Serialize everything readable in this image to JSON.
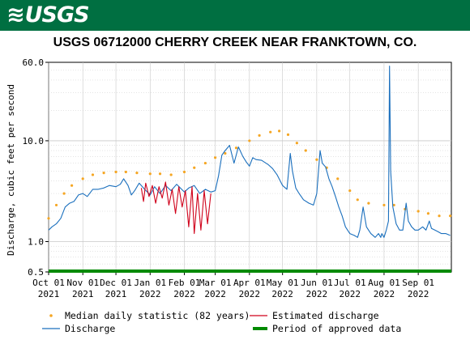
{
  "header": {
    "logo_text": "USGS",
    "banner_color": "#006f41"
  },
  "chart_data": {
    "type": "line",
    "title": "USGS 06712000 CHERRY CREEK NEAR FRANKTOWN, CO.",
    "ylabel": "Discharge, cubic feet per second",
    "xlabel": "",
    "yscale": "log",
    "ylim": [
      0.5,
      60.0
    ],
    "xlim": [
      "2021-10-01",
      "2022-10-01"
    ],
    "grid": true,
    "y_ticks": [
      {
        "value": 0.5,
        "label": "0.5"
      },
      {
        "value": 1.0,
        "label": "1.0"
      },
      {
        "value": 10.0,
        "label": "10.0"
      },
      {
        "value": 60.0,
        "label": "60.0"
      }
    ],
    "x_ticks": [
      {
        "date": "2021-10-01",
        "line1": "Oct 01",
        "line2": "2021"
      },
      {
        "date": "2021-11-01",
        "line1": "Nov 01",
        "line2": "2021"
      },
      {
        "date": "2021-12-01",
        "line1": "Dec 01",
        "line2": "2021"
      },
      {
        "date": "2022-01-01",
        "line1": "Jan 01",
        "line2": "2022"
      },
      {
        "date": "2022-02-01",
        "line1": "Feb 01",
        "line2": "2022"
      },
      {
        "date": "2022-03-01",
        "line1": "Mar 01",
        "line2": "2022"
      },
      {
        "date": "2022-04-01",
        "line1": "Apr 01",
        "line2": "2022"
      },
      {
        "date": "2022-05-01",
        "line1": "May 01",
        "line2": "2022"
      },
      {
        "date": "2022-06-01",
        "line1": "Jun 01",
        "line2": "2022"
      },
      {
        "date": "2022-07-01",
        "line1": "Jul 01",
        "line2": "2022"
      },
      {
        "date": "2022-08-01",
        "line1": "Aug 01",
        "line2": "2022"
      },
      {
        "date": "2022-09-01",
        "line1": "Sep 01",
        "line2": "2022"
      }
    ],
    "legend_position": "bottom",
    "series": [
      {
        "name": "Median daily statistic (82 years)",
        "style": "dots",
        "color": "#f5a623",
        "points": [
          [
            "2021-10-01",
            1.7
          ],
          [
            "2021-10-08",
            2.3
          ],
          [
            "2021-10-15",
            3.0
          ],
          [
            "2021-10-22",
            3.6
          ],
          [
            "2021-11-01",
            4.2
          ],
          [
            "2021-11-10",
            4.6
          ],
          [
            "2021-11-20",
            4.8
          ],
          [
            "2021-12-01",
            4.9
          ],
          [
            "2021-12-10",
            4.9
          ],
          [
            "2021-12-20",
            4.8
          ],
          [
            "2022-01-01",
            4.7
          ],
          [
            "2022-01-10",
            4.7
          ],
          [
            "2022-01-20",
            4.6
          ],
          [
            "2022-02-01",
            4.9
          ],
          [
            "2022-02-10",
            5.4
          ],
          [
            "2022-02-20",
            6.0
          ],
          [
            "2022-03-01",
            6.8
          ],
          [
            "2022-03-10",
            7.5
          ],
          [
            "2022-03-20",
            8.5
          ],
          [
            "2022-04-01",
            10.0
          ],
          [
            "2022-04-10",
            11.3
          ],
          [
            "2022-04-20",
            12.2
          ],
          [
            "2022-04-28",
            12.5
          ],
          [
            "2022-05-06",
            11.5
          ],
          [
            "2022-05-14",
            9.5
          ],
          [
            "2022-05-22",
            8.0
          ],
          [
            "2022-06-01",
            6.5
          ],
          [
            "2022-06-10",
            5.4
          ],
          [
            "2022-06-20",
            4.2
          ],
          [
            "2022-07-01",
            3.2
          ],
          [
            "2022-07-08",
            2.6
          ],
          [
            "2022-07-18",
            2.4
          ],
          [
            "2022-08-01",
            2.3
          ],
          [
            "2022-08-10",
            2.3
          ],
          [
            "2022-08-20",
            2.1
          ],
          [
            "2022-09-01",
            2.0
          ],
          [
            "2022-09-10",
            1.9
          ],
          [
            "2022-09-20",
            1.8
          ],
          [
            "2022-09-30",
            1.8
          ]
        ]
      },
      {
        "name": "Discharge",
        "style": "line",
        "color": "#1a6fbd",
        "points": [
          [
            "2021-10-01",
            1.3
          ],
          [
            "2021-10-04",
            1.4
          ],
          [
            "2021-10-08",
            1.5
          ],
          [
            "2021-10-12",
            1.7
          ],
          [
            "2021-10-16",
            2.2
          ],
          [
            "2021-10-20",
            2.4
          ],
          [
            "2021-10-24",
            2.5
          ],
          [
            "2021-10-28",
            2.9
          ],
          [
            "2021-11-01",
            3.0
          ],
          [
            "2021-11-05",
            2.8
          ],
          [
            "2021-11-10",
            3.3
          ],
          [
            "2021-11-15",
            3.3
          ],
          [
            "2021-11-20",
            3.4
          ],
          [
            "2021-11-25",
            3.6
          ],
          [
            "2021-12-01",
            3.5
          ],
          [
            "2021-12-05",
            3.7
          ],
          [
            "2021-12-08",
            4.2
          ],
          [
            "2021-12-12",
            3.6
          ],
          [
            "2021-12-15",
            2.9
          ],
          [
            "2021-12-18",
            3.2
          ],
          [
            "2021-12-22",
            3.8
          ],
          [
            "2021-12-27",
            3.3
          ],
          [
            "2022-01-01",
            2.9
          ],
          [
            "2022-01-05",
            3.5
          ],
          [
            "2022-01-10",
            3.0
          ],
          [
            "2022-01-15",
            3.6
          ],
          [
            "2022-01-20",
            3.2
          ],
          [
            "2022-01-25",
            3.7
          ],
          [
            "2022-02-01",
            3.1
          ],
          [
            "2022-02-05",
            3.4
          ],
          [
            "2022-02-10",
            3.6
          ],
          [
            "2022-02-15",
            3.0
          ],
          [
            "2022-02-20",
            3.3
          ],
          [
            "2022-02-25",
            3.1
          ],
          [
            "2022-03-01",
            3.2
          ],
          [
            "2022-03-04",
            4.5
          ],
          [
            "2022-03-07",
            7.2
          ],
          [
            "2022-03-10",
            8.0
          ],
          [
            "2022-03-14",
            9.0
          ],
          [
            "2022-03-18",
            6.0
          ],
          [
            "2022-03-22",
            8.7
          ],
          [
            "2022-03-26",
            7.0
          ],
          [
            "2022-03-29",
            6.2
          ],
          [
            "2022-04-01",
            5.6
          ],
          [
            "2022-04-04",
            6.8
          ],
          [
            "2022-04-07",
            6.5
          ],
          [
            "2022-04-12",
            6.4
          ],
          [
            "2022-04-18",
            5.8
          ],
          [
            "2022-04-22",
            5.3
          ],
          [
            "2022-04-26",
            4.6
          ],
          [
            "2022-05-01",
            3.6
          ],
          [
            "2022-05-05",
            3.3
          ],
          [
            "2022-05-08",
            7.5
          ],
          [
            "2022-05-10",
            5.0
          ],
          [
            "2022-05-13",
            3.4
          ],
          [
            "2022-05-16",
            3.0
          ],
          [
            "2022-05-20",
            2.6
          ],
          [
            "2022-05-25",
            2.4
          ],
          [
            "2022-05-29",
            2.3
          ],
          [
            "2022-06-01",
            3.0
          ],
          [
            "2022-06-04",
            8.0
          ],
          [
            "2022-06-06",
            6.0
          ],
          [
            "2022-06-09",
            5.5
          ],
          [
            "2022-06-12",
            4.2
          ],
          [
            "2022-06-15",
            3.5
          ],
          [
            "2022-06-18",
            2.8
          ],
          [
            "2022-06-21",
            2.2
          ],
          [
            "2022-06-24",
            1.8
          ],
          [
            "2022-06-27",
            1.4
          ],
          [
            "2022-07-01",
            1.2
          ],
          [
            "2022-07-05",
            1.15
          ],
          [
            "2022-07-08",
            1.1
          ],
          [
            "2022-07-10",
            1.3
          ],
          [
            "2022-07-13",
            2.2
          ],
          [
            "2022-07-16",
            1.4
          ],
          [
            "2022-07-20",
            1.2
          ],
          [
            "2022-07-24",
            1.1
          ],
          [
            "2022-07-27",
            1.2
          ],
          [
            "2022-07-29",
            1.1
          ],
          [
            "2022-07-30",
            1.2
          ],
          [
            "2022-08-01",
            1.1
          ],
          [
            "2022-08-03",
            1.3
          ],
          [
            "2022-08-05",
            1.6
          ],
          [
            "2022-08-06",
            55.0
          ],
          [
            "2022-08-07",
            5.0
          ],
          [
            "2022-08-09",
            2.2
          ],
          [
            "2022-08-12",
            1.5
          ],
          [
            "2022-08-15",
            1.3
          ],
          [
            "2022-08-18",
            1.3
          ],
          [
            "2022-08-21",
            2.4
          ],
          [
            "2022-08-23",
            1.6
          ],
          [
            "2022-08-26",
            1.4
          ],
          [
            "2022-08-29",
            1.3
          ],
          [
            "2022-09-01",
            1.3
          ],
          [
            "2022-09-05",
            1.4
          ],
          [
            "2022-09-08",
            1.3
          ],
          [
            "2022-09-11",
            1.6
          ],
          [
            "2022-09-13",
            1.35
          ],
          [
            "2022-09-16",
            1.3
          ],
          [
            "2022-09-19",
            1.25
          ],
          [
            "2022-09-22",
            1.2
          ],
          [
            "2022-09-26",
            1.2
          ],
          [
            "2022-09-30",
            1.15
          ]
        ]
      },
      {
        "name": "Estimated discharge",
        "style": "line",
        "color": "#d0021b",
        "points": [
          [
            "2021-12-24",
            3.4
          ],
          [
            "2021-12-26",
            2.5
          ],
          [
            "2021-12-28",
            3.8
          ],
          [
            "2021-12-31",
            2.8
          ],
          [
            "2022-01-03",
            3.6
          ],
          [
            "2022-01-06",
            2.4
          ],
          [
            "2022-01-09",
            3.5
          ],
          [
            "2022-01-12",
            2.7
          ],
          [
            "2022-01-15",
            3.9
          ],
          [
            "2022-01-18",
            2.3
          ],
          [
            "2022-01-21",
            3.3
          ],
          [
            "2022-01-24",
            1.9
          ],
          [
            "2022-01-27",
            3.5
          ],
          [
            "2022-01-30",
            2.2
          ],
          [
            "2022-02-02",
            3.2
          ],
          [
            "2022-02-05",
            1.4
          ],
          [
            "2022-02-08",
            3.5
          ],
          [
            "2022-02-10",
            1.2
          ],
          [
            "2022-02-13",
            3.0
          ],
          [
            "2022-02-16",
            1.3
          ],
          [
            "2022-02-19",
            3.2
          ],
          [
            "2022-02-22",
            1.5
          ],
          [
            "2022-02-25",
            3.0
          ]
        ]
      },
      {
        "name": "Period of approved data",
        "style": "bar",
        "color": "#008a00",
        "range": [
          "2021-10-01",
          "2022-10-01"
        ]
      }
    ]
  }
}
